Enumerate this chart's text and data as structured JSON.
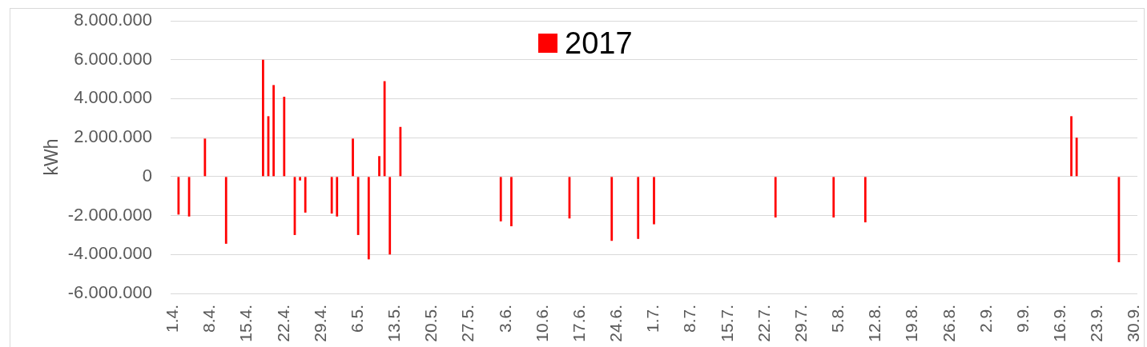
{
  "chart_data": {
    "type": "bar",
    "ylabel": "kWh",
    "legend": "top",
    "grid": "y",
    "ylim": [
      -6000000,
      8000000
    ],
    "yticks": [
      {
        "value": -6000000,
        "label": "-6.000.000"
      },
      {
        "value": -4000000,
        "label": "-4.000.000"
      },
      {
        "value": -2000000,
        "label": "-2.000.000"
      },
      0,
      {
        "value": 2000000,
        "label": "2.000.000"
      },
      {
        "value": 4000000,
        "label": "4.000.000"
      },
      {
        "value": 6000000,
        "label": "6.000.000"
      },
      {
        "value": 8000000,
        "label": "8.000.000"
      }
    ],
    "categories": [
      "1.4.",
      null,
      null,
      null,
      null,
      null,
      null,
      "8.4.",
      null,
      null,
      null,
      null,
      null,
      null,
      "15.4.",
      null,
      null,
      null,
      null,
      null,
      null,
      "22.4.",
      null,
      null,
      null,
      null,
      null,
      null,
      "29.4.",
      null,
      null,
      null,
      null,
      null,
      null,
      "6.5.",
      null,
      null,
      null,
      null,
      null,
      null,
      "13.5.",
      null,
      null,
      null,
      null,
      null,
      null,
      "20.5.",
      null,
      null,
      null,
      null,
      null,
      null,
      "27.5.",
      null,
      null,
      null,
      null,
      null,
      null,
      "3.6.",
      null,
      null,
      null,
      null,
      null,
      null,
      "10.6.",
      null,
      null,
      null,
      null,
      null,
      null,
      "17.6.",
      null,
      null,
      null,
      null,
      null,
      null,
      "24.6.",
      null,
      null,
      null,
      null,
      null,
      null,
      "1.7.",
      null,
      null,
      null,
      null,
      null,
      null,
      "8.7.",
      null,
      null,
      null,
      null,
      null,
      null,
      "15.7.",
      null,
      null,
      null,
      null,
      null,
      null,
      "22.7.",
      null,
      null,
      null,
      null,
      null,
      null,
      "29.7.",
      null,
      null,
      null,
      null,
      null,
      null,
      "5.8.",
      null,
      null,
      null,
      null,
      null,
      null,
      "12.8.",
      null,
      null,
      null,
      null,
      null,
      null,
      "19.8.",
      null,
      null,
      null,
      null,
      null,
      null,
      "26.8.",
      null,
      null,
      null,
      null,
      null,
      null,
      "2.9.",
      null,
      null,
      null,
      null,
      null,
      null,
      "9.9.",
      null,
      null,
      null,
      null,
      null,
      null,
      "16.9.",
      null,
      null,
      null,
      null,
      null,
      null,
      "23.9.",
      null,
      null,
      null,
      null,
      null,
      null,
      "30.9."
    ],
    "series": [
      {
        "name": "2017",
        "color": "#ff0000",
        "values": [
          null,
          -1950000,
          null,
          -2050000,
          null,
          null,
          1950000,
          null,
          null,
          null,
          -3450000,
          null,
          null,
          null,
          null,
          null,
          null,
          6000000,
          3100000,
          4700000,
          null,
          4100000,
          null,
          -3000000,
          -200000,
          -1850000,
          null,
          null,
          null,
          null,
          -1900000,
          -2050000,
          null,
          null,
          1950000,
          -3000000,
          null,
          -4250000,
          null,
          1050000,
          4900000,
          -4000000,
          null,
          2550000,
          null,
          null,
          null,
          null,
          null,
          null,
          null,
          null,
          null,
          null,
          null,
          null,
          null,
          null,
          null,
          null,
          null,
          null,
          -2300000,
          null,
          -2550000,
          null,
          null,
          null,
          null,
          null,
          null,
          null,
          null,
          null,
          null,
          -2150000,
          null,
          null,
          null,
          null,
          null,
          null,
          null,
          -3300000,
          null,
          null,
          null,
          null,
          -3200000,
          null,
          null,
          -2450000,
          null,
          null,
          null,
          null,
          null,
          null,
          null,
          null,
          null,
          null,
          null,
          null,
          null,
          null,
          null,
          null,
          null,
          null,
          null,
          null,
          null,
          null,
          -2100000,
          null,
          null,
          null,
          null,
          null,
          null,
          null,
          null,
          null,
          null,
          -2100000,
          null,
          null,
          null,
          null,
          null,
          -2350000,
          null,
          null,
          null,
          null,
          null,
          null,
          null,
          null,
          null,
          null,
          null,
          null,
          null,
          null,
          null,
          null,
          null,
          null,
          null,
          null,
          null,
          null,
          null,
          null,
          null,
          null,
          null,
          null,
          null,
          null,
          null,
          null,
          null,
          null,
          null,
          null,
          null,
          null,
          3100000,
          2000000,
          null,
          null,
          null,
          null,
          null,
          null,
          null,
          -4400000,
          null,
          null,
          null
        ]
      }
    ]
  }
}
